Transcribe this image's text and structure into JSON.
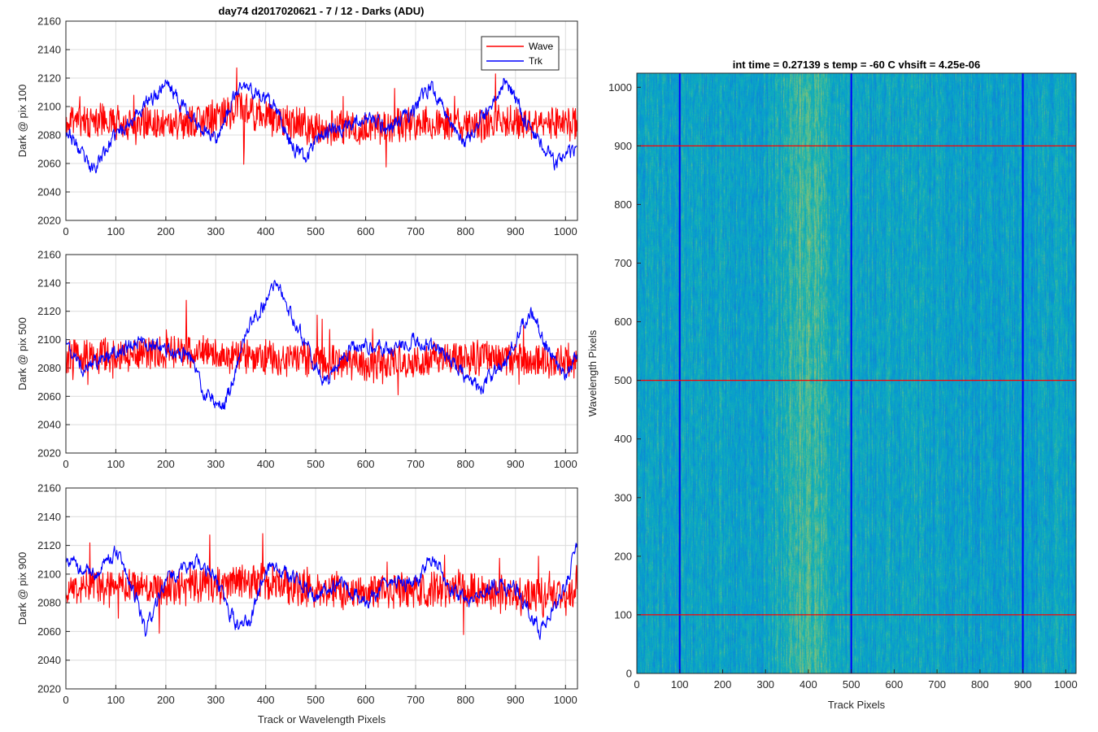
{
  "figure_title": "day74 d2017020621 - 7 / 12 - Darks (ADU)",
  "chart_data": [
    {
      "type": "line",
      "title": "day74 d2017020621 - 7 / 12 - Darks (ADU)",
      "ylabel": "Dark @ pix 100",
      "xlabel": "",
      "xlim": [
        0,
        1024
      ],
      "ylim": [
        2020,
        2160
      ],
      "xticks": [
        0,
        100,
        200,
        300,
        400,
        500,
        600,
        700,
        800,
        900,
        1000
      ],
      "yticks": [
        2020,
        2040,
        2060,
        2080,
        2100,
        2120,
        2140,
        2160
      ],
      "grid": true,
      "legend": {
        "placement": "top-right",
        "entries": [
          "Wave",
          "Trk"
        ]
      },
      "series": [
        {
          "name": "Wave",
          "color": "#ff0000",
          "noise": 14,
          "seed": 11,
          "x": [
            0,
            100,
            200,
            300,
            350,
            400,
            500,
            600,
            700,
            800,
            900,
            1000,
            1024
          ],
          "y": [
            2090,
            2090,
            2088,
            2092,
            2100,
            2092,
            2085,
            2085,
            2088,
            2086,
            2090,
            2088,
            2088
          ]
        },
        {
          "name": "Trk",
          "color": "#0000ff",
          "noise": 4,
          "seed": 23,
          "x": [
            0,
            50,
            100,
            150,
            180,
            200,
            250,
            300,
            350,
            380,
            420,
            450,
            480,
            500,
            550,
            600,
            650,
            700,
            730,
            770,
            800,
            850,
            880,
            920,
            950,
            980,
            1024
          ],
          "y": [
            2085,
            2055,
            2080,
            2098,
            2108,
            2118,
            2092,
            2078,
            2115,
            2110,
            2098,
            2075,
            2062,
            2080,
            2085,
            2092,
            2085,
            2098,
            2115,
            2090,
            2072,
            2100,
            2120,
            2090,
            2075,
            2060,
            2070
          ]
        }
      ]
    },
    {
      "type": "line",
      "title": "",
      "ylabel": "Dark @ pix 500",
      "xlabel": "",
      "xlim": [
        0,
        1024
      ],
      "ylim": [
        2020,
        2160
      ],
      "xticks": [
        0,
        100,
        200,
        300,
        400,
        500,
        600,
        700,
        800,
        900,
        1000
      ],
      "yticks": [
        2020,
        2040,
        2060,
        2080,
        2100,
        2120,
        2140,
        2160
      ],
      "grid": true,
      "series": [
        {
          "name": "Wave",
          "color": "#ff0000",
          "noise": 14,
          "seed": 31,
          "x": [
            0,
            100,
            200,
            300,
            400,
            500,
            600,
            700,
            800,
            900,
            1000,
            1024
          ],
          "y": [
            2088,
            2090,
            2092,
            2090,
            2088,
            2085,
            2082,
            2085,
            2088,
            2087,
            2085,
            2085
          ]
        },
        {
          "name": "Trk",
          "color": "#0000ff",
          "noise": 4,
          "seed": 47,
          "x": [
            0,
            30,
            60,
            100,
            150,
            200,
            250,
            280,
            320,
            360,
            420,
            460,
            500,
            520,
            560,
            600,
            650,
            700,
            750,
            800,
            830,
            880,
            930,
            960,
            1000,
            1024
          ],
          "y": [
            2100,
            2080,
            2085,
            2092,
            2098,
            2093,
            2088,
            2060,
            2055,
            2105,
            2140,
            2112,
            2082,
            2070,
            2092,
            2095,
            2093,
            2100,
            2092,
            2075,
            2065,
            2085,
            2122,
            2095,
            2075,
            2092
          ]
        }
      ]
    },
    {
      "type": "line",
      "title": "",
      "ylabel": "Dark @ pix 900",
      "xlabel": "Track or Wavelength Pixels",
      "xlim": [
        0,
        1024
      ],
      "ylim": [
        2020,
        2160
      ],
      "xticks": [
        0,
        100,
        200,
        300,
        400,
        500,
        600,
        700,
        800,
        900,
        1000
      ],
      "yticks": [
        2020,
        2040,
        2060,
        2080,
        2100,
        2120,
        2140,
        2160
      ],
      "grid": true,
      "series": [
        {
          "name": "Wave",
          "color": "#ff0000",
          "noise": 15,
          "seed": 59,
          "x": [
            0,
            100,
            200,
            300,
            400,
            500,
            600,
            700,
            800,
            900,
            1000,
            1024
          ],
          "y": [
            2090,
            2092,
            2090,
            2092,
            2095,
            2090,
            2088,
            2088,
            2090,
            2085,
            2085,
            2088
          ]
        },
        {
          "name": "Trk",
          "color": "#0000ff",
          "noise": 4,
          "seed": 71,
          "x": [
            0,
            60,
            100,
            140,
            160,
            200,
            260,
            300,
            340,
            370,
            400,
            450,
            500,
            550,
            600,
            650,
            700,
            730,
            770,
            800,
            850,
            900,
            950,
            1000,
            1024
          ],
          "y": [
            2110,
            2100,
            2115,
            2085,
            2060,
            2095,
            2110,
            2095,
            2065,
            2068,
            2105,
            2098,
            2085,
            2095,
            2080,
            2095,
            2095,
            2112,
            2092,
            2080,
            2092,
            2090,
            2062,
            2092,
            2120
          ]
        }
      ]
    },
    {
      "type": "heatmap",
      "title": "int time = 0.27139 s   temp = -60 C   vhsift = 4.25e-06",
      "xlabel": "Track Pixels",
      "ylabel": "Wavelength Pixels",
      "xlim": [
        0,
        1024
      ],
      "ylim": [
        0,
        1024
      ],
      "xticks": [
        0,
        100,
        200,
        300,
        400,
        500,
        600,
        700,
        800,
        900,
        1000
      ],
      "yticks": [
        0,
        100,
        200,
        300,
        400,
        500,
        600,
        700,
        800,
        900,
        1000
      ],
      "colormap": "parula",
      "overlay_horizontal": {
        "color": "#ff0000",
        "values": [
          100,
          500,
          900
        ]
      },
      "overlay_vertical": {
        "color": "#0000ff",
        "values": [
          100,
          500,
          900
        ]
      }
    }
  ]
}
